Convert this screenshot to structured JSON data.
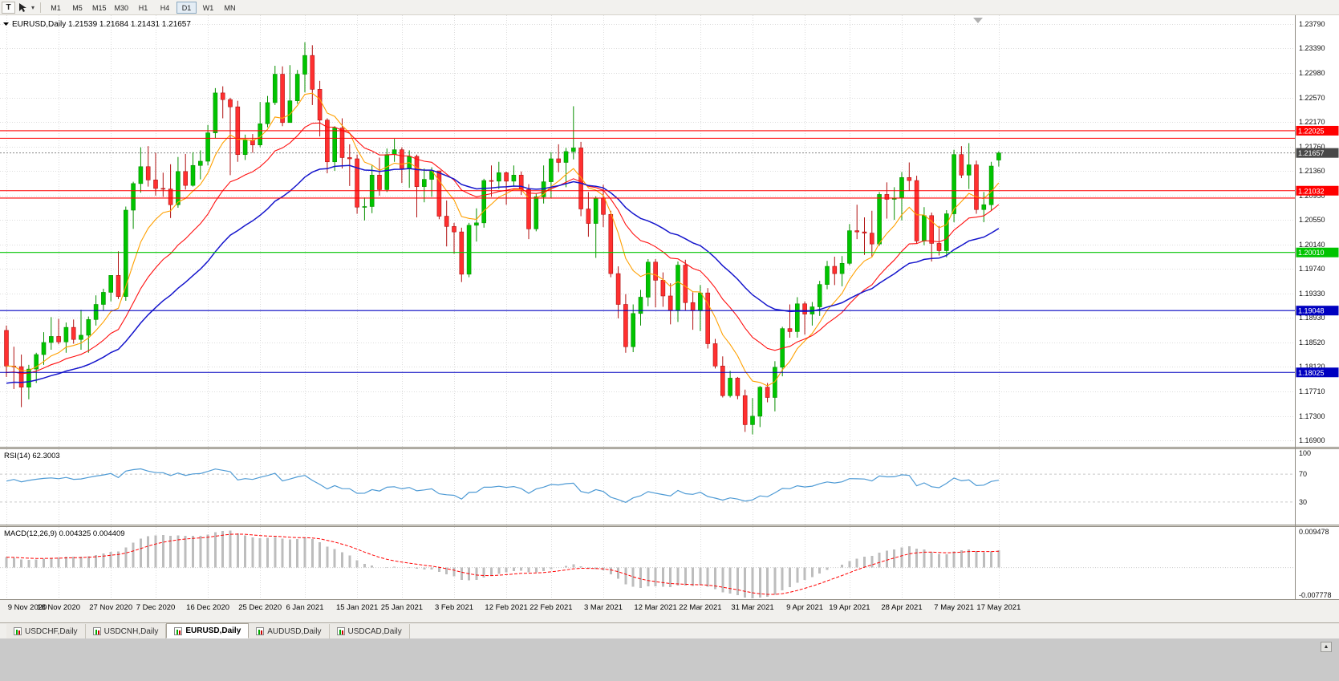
{
  "toolbar": {
    "left_button": "T",
    "timeframes": [
      "M1",
      "M5",
      "M15",
      "M30",
      "H1",
      "H4",
      "D1",
      "W1",
      "MN"
    ],
    "active_timeframe": "D1"
  },
  "tabs": {
    "items": [
      "USDCHF,Daily",
      "USDCNH,Daily",
      "EURUSD,Daily",
      "AUDUSD,Daily",
      "USDCAD,Daily"
    ],
    "active": "EURUSD,Daily"
  },
  "scrollbar": {
    "up_arrow": "▲"
  },
  "colors": {
    "up": "#00C400",
    "up_border": "#089000",
    "down": "#FF3030",
    "down_border": "#B01010",
    "grid": "#DCDCDC",
    "bg": "#FFFFFF",
    "axis_text": "#111111",
    "bid_box": "#484848"
  },
  "chart_data": {
    "type": "candlestick",
    "symbol": "EURUSD",
    "timeframe": "Daily",
    "title": "EURUSD,Daily",
    "ohlc": {
      "open": "1.21539",
      "high": "1.21684",
      "low": "1.21431",
      "close": "1.21657"
    },
    "y_axis_labels": [
      "1.23790",
      "1.23390",
      "1.22980",
      "1.22570",
      "1.22170",
      "1.21760",
      "1.21360",
      "1.20950",
      "1.20550",
      "1.20140",
      "1.19740",
      "1.19330",
      "1.18930",
      "1.18520",
      "1.18120",
      "1.17710",
      "1.17300",
      "1.16900"
    ],
    "y_axis_range": [
      1.2379,
      1.169
    ],
    "x_ticks": [
      {
        "i": 0,
        "label": "9 Nov 2020"
      },
      {
        "i": 7,
        "label": "18 Nov 2020"
      },
      {
        "i": 14,
        "label": "27 Nov 2020"
      },
      {
        "i": 20,
        "label": "7 Dec 2020"
      },
      {
        "i": 27,
        "label": "16 Dec 2020"
      },
      {
        "i": 34,
        "label": "25 Dec 2020"
      },
      {
        "i": 40,
        "label": "6 Jan 2021"
      },
      {
        "i": 47,
        "label": "15 Jan 2021"
      },
      {
        "i": 53,
        "label": "25 Jan 2021"
      },
      {
        "i": 60,
        "label": "3 Feb 2021"
      },
      {
        "i": 67,
        "label": "12 Feb 2021"
      },
      {
        "i": 73,
        "label": "22 Feb 2021"
      },
      {
        "i": 80,
        "label": "3 Mar 2021"
      },
      {
        "i": 87,
        "label": "12 Mar 2021"
      },
      {
        "i": 93,
        "label": "22 Mar 2021"
      },
      {
        "i": 100,
        "label": "31 Mar 2021"
      },
      {
        "i": 107,
        "label": "9 Apr 2021"
      },
      {
        "i": 113,
        "label": "19 Apr 2021"
      },
      {
        "i": 120,
        "label": "28 Apr 2021"
      },
      {
        "i": 127,
        "label": "7 May 2021"
      },
      {
        "i": 133,
        "label": "17 May 2021"
      }
    ],
    "candles": [
      [
        1.1872,
        1.188,
        1.1795,
        1.1813
      ],
      [
        1.1813,
        1.1845,
        1.1775,
        1.1812
      ],
      [
        1.1812,
        1.1832,
        1.1745,
        1.1778
      ],
      [
        1.1778,
        1.1815,
        1.1758,
        1.1808
      ],
      [
        1.1808,
        1.1835,
        1.1785,
        1.1832
      ],
      [
        1.1832,
        1.1869,
        1.1815,
        1.1852
      ],
      [
        1.1852,
        1.1894,
        1.184,
        1.1862
      ],
      [
        1.1862,
        1.1891,
        1.1849,
        1.1853
      ],
      [
        1.1853,
        1.1885,
        1.1835,
        1.1877
      ],
      [
        1.1877,
        1.189,
        1.185,
        1.1857
      ],
      [
        1.1857,
        1.1906,
        1.184,
        1.1864
      ],
      [
        1.1864,
        1.1895,
        1.1835,
        1.189
      ],
      [
        1.189,
        1.193,
        1.188,
        1.1915
      ],
      [
        1.1915,
        1.1941,
        1.1905,
        1.1935
      ],
      [
        1.1935,
        1.1963,
        1.192,
        1.1963
      ],
      [
        1.1963,
        1.2003,
        1.1924,
        1.1928
      ],
      [
        1.1928,
        1.2077,
        1.1921,
        1.2071
      ],
      [
        1.2071,
        1.2118,
        1.204,
        1.2115
      ],
      [
        1.2115,
        1.2175,
        1.21,
        1.2143
      ],
      [
        1.2143,
        1.2177,
        1.211,
        1.2121
      ],
      [
        1.2121,
        1.2166,
        1.2095,
        1.2107
      ],
      [
        1.2107,
        1.2133,
        1.2093,
        1.2106
      ],
      [
        1.2106,
        1.2147,
        1.2058,
        1.208
      ],
      [
        1.208,
        1.2159,
        1.2075,
        1.2135
      ],
      [
        1.2135,
        1.2164,
        1.2105,
        1.2112
      ],
      [
        1.2112,
        1.2167,
        1.211,
        1.2145
      ],
      [
        1.2145,
        1.217,
        1.2122,
        1.2152
      ],
      [
        1.2152,
        1.2212,
        1.2145,
        1.2199
      ],
      [
        1.2199,
        1.2273,
        1.219,
        1.2265
      ],
      [
        1.2265,
        1.2276,
        1.2223,
        1.2254
      ],
      [
        1.2254,
        1.2257,
        1.2129,
        1.2242
      ],
      [
        1.2242,
        1.2252,
        1.2151,
        1.2163
      ],
      [
        1.2163,
        1.2196,
        1.2154,
        1.2187
      ],
      [
        1.2187,
        1.2197,
        1.2166,
        1.2179
      ],
      [
        1.2179,
        1.225,
        1.2175,
        1.2214
      ],
      [
        1.2214,
        1.226,
        1.2208,
        1.2249
      ],
      [
        1.2249,
        1.231,
        1.2245,
        1.2296
      ],
      [
        1.2296,
        1.2309,
        1.221,
        1.2216
      ],
      [
        1.2216,
        1.2311,
        1.2216,
        1.2252
      ],
      [
        1.2252,
        1.2303,
        1.2247,
        1.2296
      ],
      [
        1.2296,
        1.2349,
        1.2266,
        1.2327
      ],
      [
        1.2327,
        1.2344,
        1.2245,
        1.2271
      ],
      [
        1.2271,
        1.2285,
        1.2193,
        1.222
      ],
      [
        1.222,
        1.2223,
        1.2132,
        1.2151
      ],
      [
        1.2151,
        1.221,
        1.2136,
        1.2207
      ],
      [
        1.2207,
        1.2223,
        1.214,
        1.2158
      ],
      [
        1.2158,
        1.218,
        1.2111,
        1.2156
      ],
      [
        1.2156,
        1.2163,
        1.2065,
        1.2076
      ],
      [
        1.2076,
        1.2092,
        1.2054,
        1.2077
      ],
      [
        1.2077,
        1.2145,
        1.2066,
        1.2129
      ],
      [
        1.2129,
        1.2158,
        1.2095,
        1.2105
      ],
      [
        1.2105,
        1.2173,
        1.2101,
        1.2163
      ],
      [
        1.2163,
        1.2189,
        1.2151,
        1.2171
      ],
      [
        1.2171,
        1.2175,
        1.2116,
        1.214
      ],
      [
        1.214,
        1.217,
        1.2108,
        1.216
      ],
      [
        1.216,
        1.2163,
        1.2059,
        1.211
      ],
      [
        1.211,
        1.214,
        1.2084,
        1.2122
      ],
      [
        1.2122,
        1.2142,
        1.2093,
        1.2136
      ],
      [
        1.2136,
        1.2136,
        1.2056,
        1.2061
      ],
      [
        1.2061,
        1.2087,
        1.2011,
        1.2044
      ],
      [
        1.2044,
        1.205,
        1.1999,
        1.2035
      ],
      [
        1.2035,
        1.2042,
        1.1952,
        1.1965
      ],
      [
        1.1965,
        1.205,
        1.196,
        1.2046
      ],
      [
        1.2046,
        1.2074,
        1.2019,
        1.205
      ],
      [
        1.205,
        1.2123,
        1.2042,
        1.212
      ],
      [
        1.212,
        1.2145,
        1.2093,
        1.2119
      ],
      [
        1.2119,
        1.2151,
        1.2106,
        1.2133
      ],
      [
        1.2133,
        1.2135,
        1.208,
        1.2119
      ],
      [
        1.2119,
        1.2145,
        1.211,
        1.2129
      ],
      [
        1.2129,
        1.2135,
        1.2096,
        1.2105
      ],
      [
        1.2105,
        1.2114,
        1.2023,
        1.204
      ],
      [
        1.204,
        1.2098,
        1.2036,
        1.2093
      ],
      [
        1.2093,
        1.2145,
        1.2082,
        1.2118
      ],
      [
        1.2118,
        1.2167,
        1.2091,
        1.2156
      ],
      [
        1.2156,
        1.218,
        1.2134,
        1.215
      ],
      [
        1.215,
        1.2174,
        1.2109,
        1.2168
      ],
      [
        1.2168,
        1.2243,
        1.2155,
        1.2174
      ],
      [
        1.2174,
        1.2184,
        1.2061,
        1.2073
      ],
      [
        1.2073,
        1.2101,
        1.2027,
        1.2049
      ],
      [
        1.2049,
        1.2094,
        1.1992,
        1.2091
      ],
      [
        1.2091,
        1.2113,
        1.2043,
        1.2064
      ],
      [
        1.2064,
        1.207,
        1.196,
        1.1966
      ],
      [
        1.1966,
        1.1978,
        1.1892,
        1.1915
      ],
      [
        1.1915,
        1.1932,
        1.1835,
        1.1845
      ],
      [
        1.1845,
        1.1915,
        1.1836,
        1.19
      ],
      [
        1.19,
        1.1939,
        1.188,
        1.1927
      ],
      [
        1.1927,
        1.199,
        1.1912,
        1.1985
      ],
      [
        1.1985,
        1.199,
        1.191,
        1.1955
      ],
      [
        1.1955,
        1.1968,
        1.1911,
        1.1929
      ],
      [
        1.1929,
        1.195,
        1.1882,
        1.1905
      ],
      [
        1.1905,
        1.1986,
        1.1886,
        1.198
      ],
      [
        1.198,
        1.1989,
        1.1905,
        1.1918
      ],
      [
        1.1918,
        1.1935,
        1.1873,
        1.1905
      ],
      [
        1.1905,
        1.1947,
        1.1871,
        1.1934
      ],
      [
        1.1934,
        1.1942,
        1.1842,
        1.185
      ],
      [
        1.185,
        1.1858,
        1.1809,
        1.1813
      ],
      [
        1.1813,
        1.1829,
        1.1761,
        1.1764
      ],
      [
        1.1764,
        1.1805,
        1.1761,
        1.1793
      ],
      [
        1.1793,
        1.1795,
        1.1758,
        1.1764
      ],
      [
        1.1764,
        1.1774,
        1.1704,
        1.1716
      ],
      [
        1.1716,
        1.176,
        1.17,
        1.173
      ],
      [
        1.173,
        1.178,
        1.1712,
        1.1778
      ],
      [
        1.1778,
        1.1785,
        1.1753,
        1.1761
      ],
      [
        1.1761,
        1.1821,
        1.1738,
        1.1811
      ],
      [
        1.1811,
        1.1878,
        1.1796,
        1.1875
      ],
      [
        1.1875,
        1.1915,
        1.186,
        1.187
      ],
      [
        1.187,
        1.1927,
        1.186,
        1.1916
      ],
      [
        1.1916,
        1.192,
        1.1865,
        1.1899
      ],
      [
        1.1899,
        1.1919,
        1.188,
        1.1911
      ],
      [
        1.1911,
        1.1954,
        1.1896,
        1.1948
      ],
      [
        1.1948,
        1.1987,
        1.194,
        1.1978
      ],
      [
        1.1978,
        1.1994,
        1.1947,
        1.1966
      ],
      [
        1.1966,
        1.1995,
        1.1945,
        1.1983
      ],
      [
        1.1983,
        1.2048,
        1.198,
        1.2037
      ],
      [
        1.2037,
        1.208,
        1.2023,
        1.2035
      ],
      [
        1.2035,
        1.2059,
        1.1997,
        1.2033
      ],
      [
        1.2033,
        1.207,
        1.1994,
        1.2015
      ],
      [
        1.2015,
        1.2101,
        1.2012,
        1.2097
      ],
      [
        1.2097,
        1.2117,
        1.2057,
        1.2089
      ],
      [
        1.2089,
        1.2109,
        1.2055,
        1.2091
      ],
      [
        1.2091,
        1.2134,
        1.2054,
        1.2125
      ],
      [
        1.2125,
        1.215,
        1.2103,
        1.212
      ],
      [
        1.212,
        1.2128,
        1.2016,
        1.202
      ],
      [
        1.202,
        1.2076,
        1.2013,
        1.2062
      ],
      [
        1.2062,
        1.2067,
        1.1986,
        1.2016
      ],
      [
        1.2016,
        1.2045,
        1.1996,
        1.2004
      ],
      [
        1.2004,
        1.2071,
        1.1993,
        1.2065
      ],
      [
        1.2065,
        1.2171,
        1.2051,
        1.2163
      ],
      [
        1.2163,
        1.2177,
        1.2124,
        1.2129
      ],
      [
        1.2129,
        1.2182,
        1.2106,
        1.2146
      ],
      [
        1.2146,
        1.2153,
        1.2065,
        1.2072
      ],
      [
        1.2072,
        1.2101,
        1.2051,
        1.208
      ],
      [
        1.208,
        1.2151,
        1.207,
        1.2144
      ],
      [
        1.21539,
        1.21684,
        1.21431,
        1.21657
      ]
    ],
    "moving_averages": [
      {
        "name": "ma-fast",
        "period": 8,
        "color": "#FFA000"
      },
      {
        "name": "ma-mid",
        "period": 18,
        "color": "#FF1010"
      },
      {
        "name": "ma-slow",
        "period": 34,
        "color": "#1515CC"
      }
    ],
    "hlines": [
      {
        "value": 1.22025,
        "label": "1.22025",
        "color": "#FF0000",
        "labeled": true
      },
      {
        "value": 1.219,
        "color": "#FF0000",
        "labeled": false
      },
      {
        "value": 1.21032,
        "label": "1.21032",
        "color": "#FF0000",
        "labeled": true
      },
      {
        "value": 1.2091,
        "color": "#FF0000",
        "labeled": false
      },
      {
        "value": 1.2001,
        "label": "1.20010",
        "color": "#00C400",
        "labeled": true
      },
      {
        "value": 1.19048,
        "label": "1.19048",
        "color": "#0000C0",
        "labeled": true
      },
      {
        "value": 1.18025,
        "label": "1.18025",
        "color": "#0000C0",
        "labeled": true
      }
    ],
    "current_price": {
      "value": 1.21657,
      "label": "1.21657"
    },
    "rsi": {
      "label": "RSI(14) 62.3003",
      "period": 14,
      "value": "62.3003",
      "levels": [
        "100",
        "70",
        "30"
      ],
      "line_color": "#4F9BD5"
    },
    "macd": {
      "label": "MACD(12,26,9) 0.004325 0.004409",
      "values": [
        "0.004325",
        "0.004409"
      ],
      "axis_max": "0.009478",
      "axis_min": "-0.007778",
      "bar_color": "#BDBDBD",
      "signal_color": "#FF0000"
    }
  }
}
